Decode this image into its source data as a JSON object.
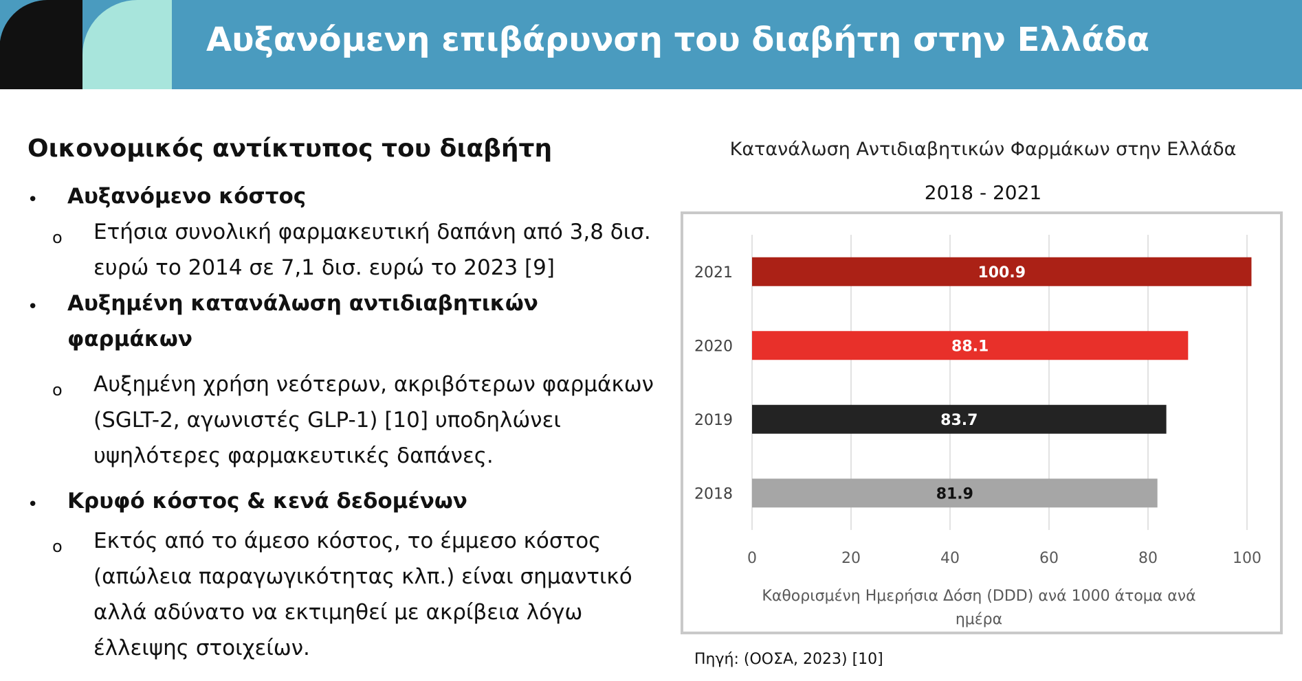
{
  "slide": {
    "title": "Αυξανόμενη επιβάρυνση του διαβήτη στην Ελλάδα",
    "colors": {
      "header": "#4a9bbf",
      "logo_dark": "#111111",
      "logo_light": "#a8e5dc"
    }
  },
  "left": {
    "section_title": "Οικονομικός αντίκτυπος του διαβήτη",
    "bullet_mark": "•",
    "sub_mark": "o",
    "items": [
      {
        "heading": "Αυξανόμενο κόστος",
        "sub": "Ετήσια συνολική φαρμακευτική δαπάνη από 3,8 δισ. ευρώ το 2014 σε 7,1 δισ. ευρώ το 2023 [9]"
      },
      {
        "heading": "Αυξημένη κατανάλωση αντιδιαβητικών φαρμάκων",
        "sub": "Αυξημένη χρήση νεότερων, ακριβότερων φαρμάκων (SGLT-2, αγωνιστές GLP-1) [10] υποδηλώνει υψηλότερες φαρμακευτικές δαπάνες."
      },
      {
        "heading": "Κρυφό κόστος & κενά δεδομένων",
        "sub": "Εκτός από το άμεσο κόστος, το έμμεσο κόστος (απώλεια παραγωγικότητας κλπ.) είναι σημαντικό αλλά αδύνατο να εκτιμηθεί με ακρίβεια λόγω έλλειψης στοιχείων."
      }
    ]
  },
  "chart_data": {
    "type": "bar",
    "orientation": "horizontal",
    "title": "Κατανάλωση Αντιδιαβητικών Φαρμάκων στην Ελλάδα",
    "subtitle": "2018 - 2021",
    "xlabel": "Καθορισμένη Ημερήσια Δόση (DDD) ανά 1000 άτομα ανά ημέρα",
    "categories": [
      "2021",
      "2020",
      "2019",
      "2018"
    ],
    "values": [
      100.9,
      88.1,
      83.7,
      81.9
    ],
    "value_labels": [
      "100.9",
      "88.1",
      "83.7",
      "81.9"
    ],
    "colors": [
      "#ab2116",
      "#e8302a",
      "#232323",
      "#a6a6a6"
    ],
    "label_colors": [
      "#ffffff",
      "#ffffff",
      "#ffffff",
      "#111111"
    ],
    "xlim": [
      0,
      100
    ],
    "xticks": [
      0,
      20,
      40,
      60,
      80,
      100
    ],
    "grid": true
  },
  "source": "Πηγή: (ΟΟΣΑ, 2023) [10]"
}
